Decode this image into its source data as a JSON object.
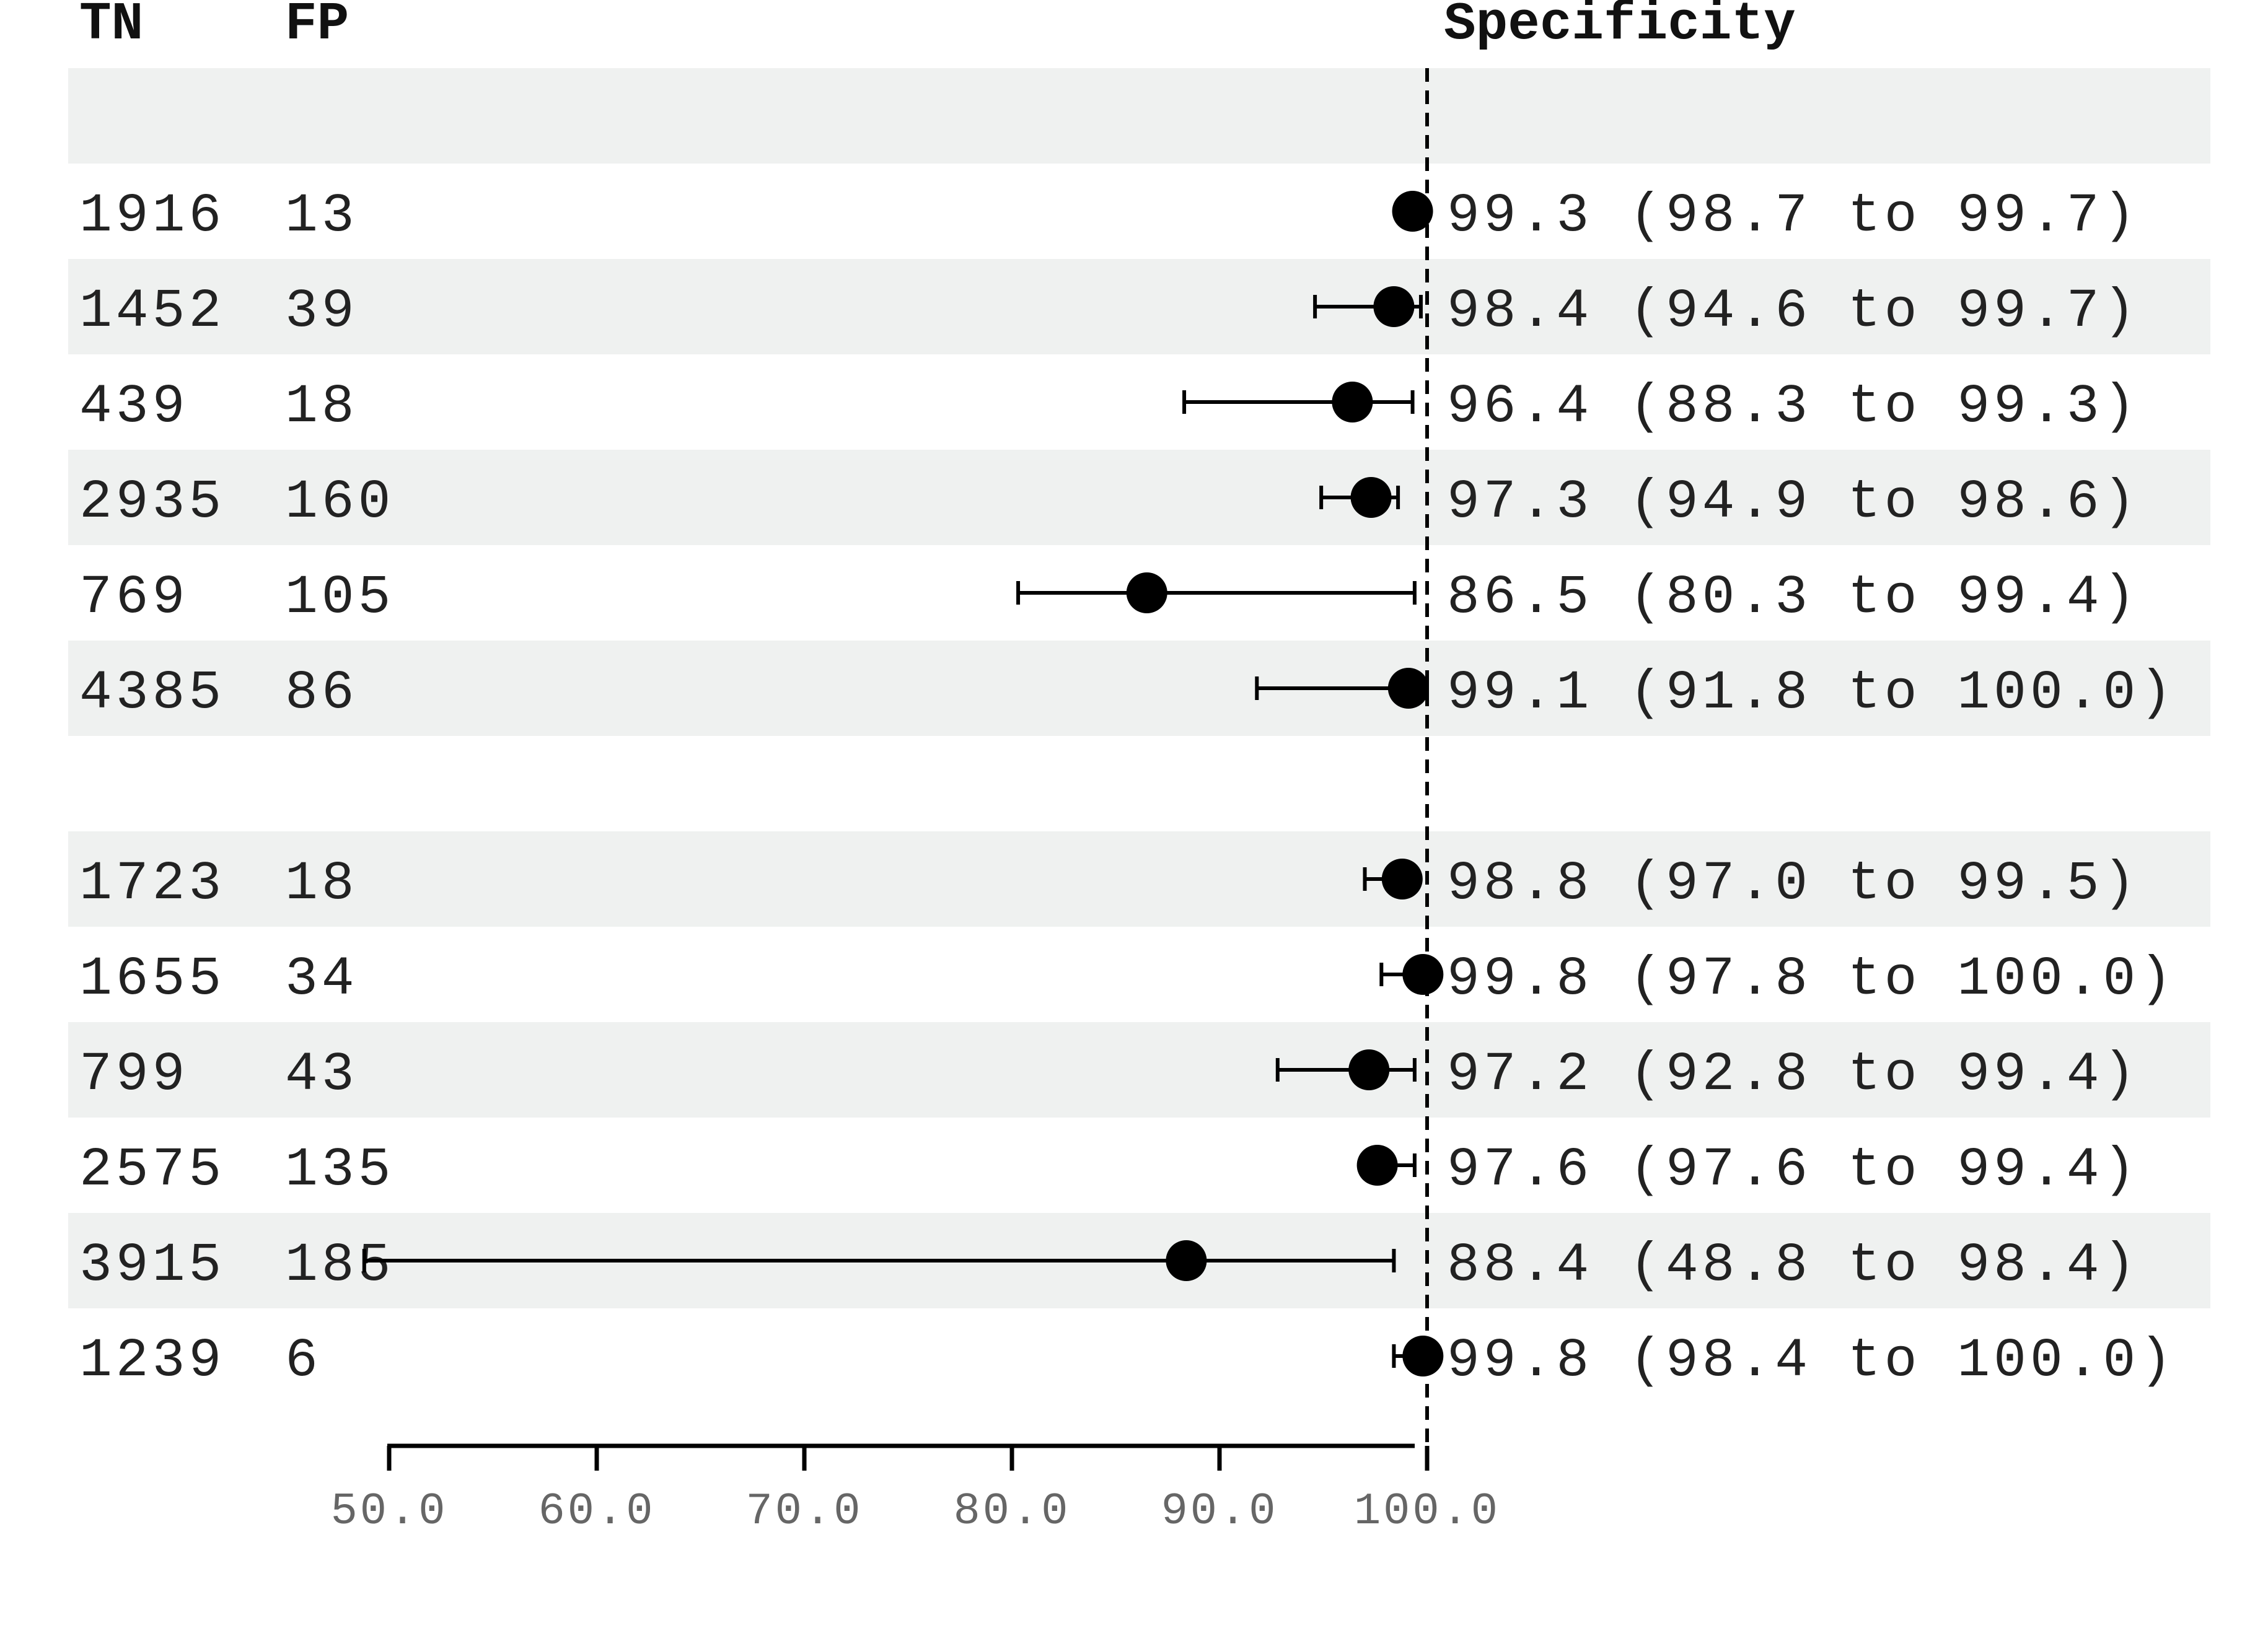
{
  "headers": {
    "tn": "TN",
    "fp": "FP",
    "specificity": "Specificity"
  },
  "colors": {
    "band": "#eff1f0",
    "marker": "#000000",
    "text": "#222222",
    "tick_text": "#666666"
  },
  "chart_data": {
    "type": "forest",
    "xlim": [
      46.5,
      102.5
    ],
    "reference_line": 100.0,
    "ticks": [
      {
        "value": 50,
        "label": "50.0"
      },
      {
        "value": 60,
        "label": "60.0"
      },
      {
        "value": 70,
        "label": "70.0"
      },
      {
        "value": 80,
        "label": "80.0"
      },
      {
        "value": 90,
        "label": "90.0"
      },
      {
        "value": 100,
        "label": "100.0"
      }
    ],
    "groups": [
      {
        "rows": [
          {
            "tn": "1916",
            "fp": "13",
            "est": 99.3,
            "lo": 98.7,
            "hi": 99.7,
            "label": "99.3 (98.7 to 99.7)"
          },
          {
            "tn": "1452",
            "fp": "39",
            "est": 98.4,
            "lo": 94.6,
            "hi": 99.7,
            "label": "98.4 (94.6 to 99.7)"
          },
          {
            "tn": "439",
            "fp": "18",
            "est": 96.4,
            "lo": 88.3,
            "hi": 99.3,
            "label": "96.4 (88.3 to 99.3)"
          },
          {
            "tn": "2935",
            "fp": "160",
            "est": 97.3,
            "lo": 94.9,
            "hi": 98.6,
            "label": "97.3 (94.9 to 98.6)"
          },
          {
            "tn": "769",
            "fp": "105",
            "est": 86.5,
            "lo": 80.3,
            "hi": 99.4,
            "label": "86.5 (80.3 to 99.4)"
          },
          {
            "tn": "4385",
            "fp": "86",
            "est": 99.1,
            "lo": 91.8,
            "hi": 100.0,
            "label": "99.1 (91.8 to 100.0)"
          }
        ]
      },
      {
        "rows": [
          {
            "tn": "1723",
            "fp": "18",
            "est": 98.8,
            "lo": 97.0,
            "hi": 99.5,
            "label": "98.8 (97.0 to 99.5)"
          },
          {
            "tn": "1655",
            "fp": "34",
            "est": 99.8,
            "lo": 97.8,
            "hi": 100.0,
            "label": "99.8 (97.8 to 100.0)"
          },
          {
            "tn": "799",
            "fp": "43",
            "est": 97.2,
            "lo": 92.8,
            "hi": 99.4,
            "label": "97.2 (92.8 to 99.4)"
          },
          {
            "tn": "2575",
            "fp": "135",
            "est": 97.6,
            "lo": 97.6,
            "hi": 99.4,
            "label": "97.6 (97.6 to 99.4)"
          },
          {
            "tn": "3915",
            "fp": "185",
            "est": 88.4,
            "lo": 48.8,
            "hi": 98.4,
            "label": "88.4 (48.8 to 98.4)"
          },
          {
            "tn": "1239",
            "fp": "6",
            "est": 99.8,
            "lo": 98.4,
            "hi": 100.0,
            "label": "99.8 (98.4 to 100.0)"
          }
        ]
      }
    ]
  }
}
